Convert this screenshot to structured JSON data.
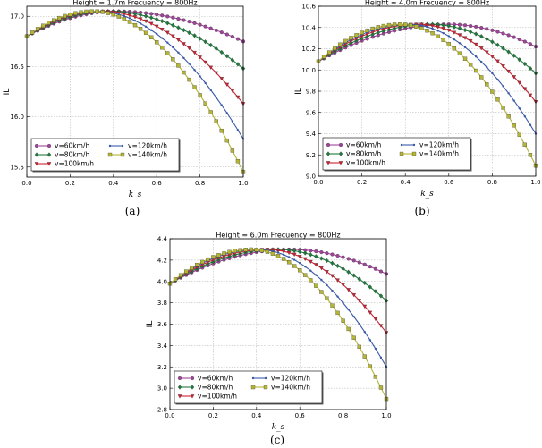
{
  "colors": {
    "v60": "#a0449a",
    "v80": "#1e7a3c",
    "v100": "#cc2233",
    "v120": "#3a5aa8",
    "v140": "#b5b535"
  },
  "chart_data": [
    {
      "type": "line",
      "panel_label": "(a)",
      "title": "Height = 1.7m  Frecuency = 800Hz",
      "xlabel": "k_s",
      "ylabel": "IL",
      "xlim": [
        0.0,
        1.0
      ],
      "ylim": [
        15.4,
        17.1
      ],
      "xticks": [
        0.0,
        0.2,
        0.4,
        0.6,
        0.8,
        1.0
      ],
      "xtick_labels": [
        "0.0",
        "0.2",
        "0.4",
        "0.6",
        "0.8",
        "1.0"
      ],
      "yticks": [
        15.5,
        16.0,
        16.5,
        17.0
      ],
      "ytick_labels": [
        "15.5",
        "16.0",
        "16.5",
        "17.0"
      ],
      "grid": true,
      "legend_position": "bottom-left",
      "series": [
        {
          "name": "v=60km/h",
          "marker": "circle",
          "start": 16.8,
          "peak_x": 0.42,
          "peak": 17.05,
          "end": 16.75
        },
        {
          "name": "v=80km/h",
          "marker": "diamond",
          "start": 16.8,
          "peak_x": 0.38,
          "peak": 17.05,
          "end": 16.48
        },
        {
          "name": "v=100km/h",
          "marker": "triangle",
          "start": 16.8,
          "peak_x": 0.35,
          "peak": 17.05,
          "end": 16.13
        },
        {
          "name": "v=120km/h",
          "marker": "point",
          "start": 16.8,
          "peak_x": 0.33,
          "peak": 17.05,
          "end": 15.78
        },
        {
          "name": "v=140km/h",
          "marker": "square",
          "start": 16.8,
          "peak_x": 0.31,
          "peak": 17.05,
          "end": 15.45
        }
      ]
    },
    {
      "type": "line",
      "panel_label": "(b)",
      "title": "Height = 4.0m  Frecuency = 800Hz",
      "xlabel": "k_s",
      "ylabel": "IL",
      "xlim": [
        0.0,
        1.0
      ],
      "ylim": [
        9.0,
        10.6
      ],
      "xticks": [
        0.0,
        0.2,
        0.4,
        0.6,
        0.8,
        1.0
      ],
      "xtick_labels": [
        "0.0",
        "0.2",
        "0.4",
        "0.6",
        "0.8",
        "1.0"
      ],
      "yticks": [
        9.0,
        9.2,
        9.4,
        9.6,
        9.8,
        10.0,
        10.2,
        10.4,
        10.6
      ],
      "ytick_labels": [
        "9.0",
        "9.2",
        "9.4",
        "9.6",
        "9.8",
        "10.0",
        "10.2",
        "10.4",
        "10.6"
      ],
      "grid": true,
      "legend_position": "bottom-left",
      "series": [
        {
          "name": "v=60km/h",
          "marker": "circle",
          "start": 10.08,
          "peak_x": 0.6,
          "peak": 10.43,
          "end": 10.22
        },
        {
          "name": "v=80km/h",
          "marker": "diamond",
          "start": 10.08,
          "peak_x": 0.52,
          "peak": 10.43,
          "end": 9.97
        },
        {
          "name": "v=100km/h",
          "marker": "triangle",
          "start": 10.08,
          "peak_x": 0.46,
          "peak": 10.43,
          "end": 9.7
        },
        {
          "name": "v=120km/h",
          "marker": "point",
          "start": 10.08,
          "peak_x": 0.42,
          "peak": 10.43,
          "end": 9.4
        },
        {
          "name": "v=140km/h",
          "marker": "square",
          "start": 10.08,
          "peak_x": 0.38,
          "peak": 10.43,
          "end": 9.1
        }
      ]
    },
    {
      "type": "line",
      "panel_label": "(c)",
      "title": "Height = 6.0m  Frecuency = 800Hz",
      "xlabel": "k_s",
      "ylabel": "IL",
      "xlim": [
        0.0,
        1.0
      ],
      "ylim": [
        2.8,
        4.4
      ],
      "xticks": [
        0.0,
        0.2,
        0.4,
        0.6,
        0.8,
        1.0
      ],
      "xtick_labels": [
        "0.0",
        "0.2",
        "0.4",
        "0.6",
        "0.8",
        "1.0"
      ],
      "yticks": [
        2.8,
        3.0,
        3.2,
        3.4,
        3.6,
        3.8,
        4.0,
        4.2,
        4.4
      ],
      "ytick_labels": [
        "2.8",
        "3.0",
        "3.2",
        "3.4",
        "3.6",
        "3.8",
        "4.0",
        "4.2",
        "4.4"
      ],
      "grid": true,
      "legend_position": "bottom-left",
      "series": [
        {
          "name": "v=60km/h",
          "marker": "circle",
          "start": 3.98,
          "peak_x": 0.56,
          "peak": 4.3,
          "end": 4.07
        },
        {
          "name": "v=80km/h",
          "marker": "diamond",
          "start": 3.98,
          "peak_x": 0.5,
          "peak": 4.3,
          "end": 3.82
        },
        {
          "name": "v=100km/h",
          "marker": "triangle",
          "start": 3.98,
          "peak_x": 0.45,
          "peak": 4.3,
          "end": 3.52
        },
        {
          "name": "v=120km/h",
          "marker": "point",
          "start": 3.98,
          "peak_x": 0.41,
          "peak": 4.3,
          "end": 3.2
        },
        {
          "name": "v=140km/h",
          "marker": "square",
          "start": 3.98,
          "peak_x": 0.38,
          "peak": 4.3,
          "end": 2.9
        }
      ]
    }
  ]
}
